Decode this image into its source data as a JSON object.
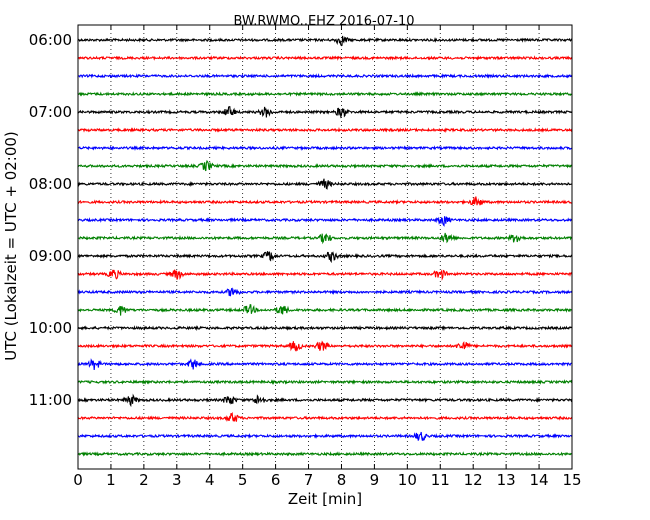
{
  "chart_data": {
    "type": "line",
    "title": "BW.RWMO..EHZ 2016-07-10",
    "xlabel": "Zeit  [min]",
    "ylabel": "UTC (Lokalzeit = UTC + 02:00)",
    "xlim": [
      0,
      15
    ],
    "x_ticks": [
      "0",
      "1",
      "2",
      "3",
      "4",
      "5",
      "6",
      "7",
      "8",
      "9",
      "10",
      "11",
      "12",
      "13",
      "14",
      "15"
    ],
    "y_tick_labels": [
      "06:00",
      "07:00",
      "08:00",
      "09:00",
      "10:00",
      "11:00"
    ],
    "trace_interval_min": 15,
    "trace_colors": [
      "#000000",
      "#ff0000",
      "#0000ff",
      "#008000"
    ],
    "grid": "vertical dotted",
    "rows": [
      {
        "start": "06:00",
        "color": "#000000",
        "events_min": [
          8.0
        ]
      },
      {
        "start": "06:15",
        "color": "#ff0000",
        "events_min": []
      },
      {
        "start": "06:30",
        "color": "#0000ff",
        "events_min": []
      },
      {
        "start": "06:45",
        "color": "#008000",
        "events_min": []
      },
      {
        "start": "07:00",
        "color": "#000000",
        "events_min": [
          4.6,
          5.7,
          8.0
        ]
      },
      {
        "start": "07:15",
        "color": "#ff0000",
        "events_min": []
      },
      {
        "start": "07:30",
        "color": "#0000ff",
        "events_min": []
      },
      {
        "start": "07:45",
        "color": "#008000",
        "events_min": [
          3.9
        ]
      },
      {
        "start": "08:00",
        "color": "#000000",
        "events_min": [
          7.5
        ]
      },
      {
        "start": "08:15",
        "color": "#ff0000",
        "events_min": [
          12.1
        ]
      },
      {
        "start": "08:30",
        "color": "#0000ff",
        "events_min": [
          11.1
        ]
      },
      {
        "start": "08:45",
        "color": "#008000",
        "events_min": [
          7.5,
          11.2,
          13.3
        ]
      },
      {
        "start": "09:00",
        "color": "#000000",
        "events_min": [
          5.8,
          7.7
        ]
      },
      {
        "start": "09:15",
        "color": "#ff0000",
        "events_min": [
          1.1,
          3.0,
          11.0
        ]
      },
      {
        "start": "09:30",
        "color": "#0000ff",
        "events_min": [
          4.7
        ]
      },
      {
        "start": "09:45",
        "color": "#008000",
        "events_min": [
          1.3,
          5.2,
          6.2
        ]
      },
      {
        "start": "10:00",
        "color": "#000000",
        "events_min": []
      },
      {
        "start": "10:15",
        "color": "#ff0000",
        "events_min": [
          6.6,
          7.4,
          11.7
        ]
      },
      {
        "start": "10:30",
        "color": "#0000ff",
        "events_min": [
          0.5,
          3.5
        ]
      },
      {
        "start": "10:45",
        "color": "#008000",
        "events_min": []
      },
      {
        "start": "11:00",
        "color": "#000000",
        "events_min": [
          1.6,
          4.6,
          5.5
        ]
      },
      {
        "start": "11:15",
        "color": "#ff0000",
        "events_min": [
          4.7
        ]
      },
      {
        "start": "11:30",
        "color": "#0000ff",
        "events_min": [
          10.4
        ]
      },
      {
        "start": "11:45",
        "color": "#008000",
        "events_min": []
      }
    ]
  }
}
